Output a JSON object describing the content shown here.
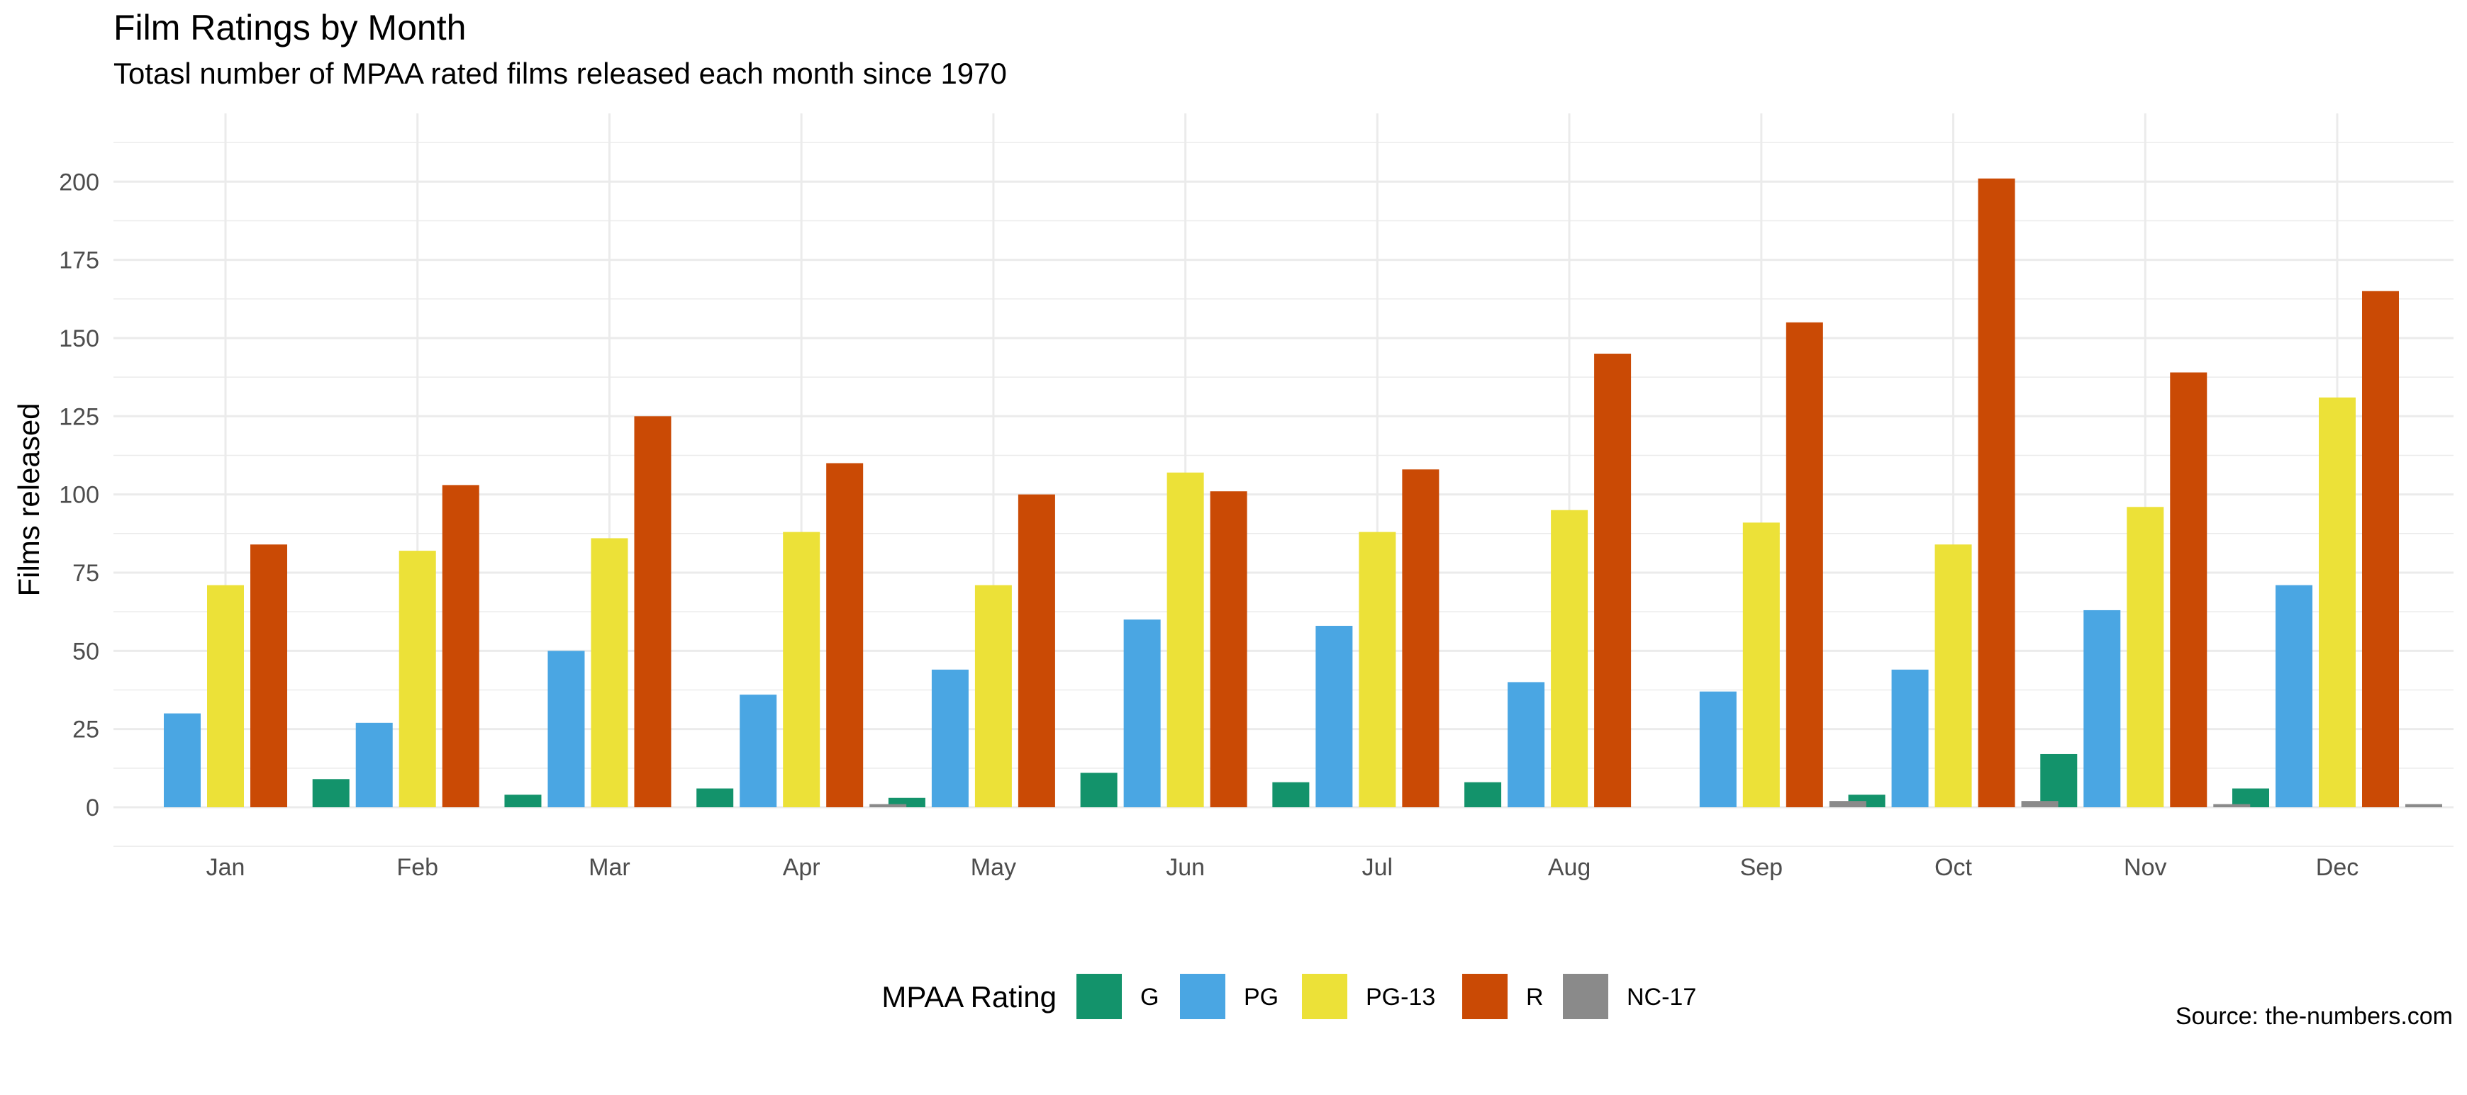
{
  "chart_data": {
    "type": "bar",
    "title": "Film Ratings by Month",
    "subtitle": "Totasl number of MPAA rated films released each month since 1970",
    "xlabel": "",
    "ylabel": "Films released",
    "ylim": [
      0,
      220
    ],
    "yticks": [
      0,
      25,
      50,
      75,
      100,
      125,
      150,
      175,
      200
    ],
    "grid": true,
    "legend": {
      "title": "MPAA Rating",
      "position": "bottom"
    },
    "categories": [
      "Jan",
      "Feb",
      "Mar",
      "Apr",
      "May",
      "Jun",
      "Jul",
      "Aug",
      "Sep",
      "Oct",
      "Nov",
      "Dec"
    ],
    "series": [
      {
        "name": "G",
        "color": "#13936B",
        "values": [
          null,
          9,
          4,
          6,
          3,
          11,
          8,
          8,
          null,
          4,
          17,
          6
        ]
      },
      {
        "name": "PG",
        "color": "#4AA6E3",
        "values": [
          30,
          27,
          50,
          36,
          44,
          60,
          58,
          40,
          37,
          44,
          63,
          71
        ]
      },
      {
        "name": "PG-13",
        "color": "#ECE138",
        "values": [
          71,
          82,
          86,
          88,
          71,
          107,
          88,
          95,
          91,
          84,
          96,
          131
        ]
      },
      {
        "name": "R",
        "color": "#CA4A05",
        "values": [
          84,
          103,
          125,
          110,
          100,
          101,
          108,
          145,
          155,
          201,
          139,
          165
        ]
      },
      {
        "name": "NC-17",
        "color": "#8A8A8A",
        "values": [
          null,
          null,
          null,
          1,
          null,
          null,
          null,
          null,
          2,
          2,
          1,
          1
        ]
      }
    ],
    "caption": "Source: the-numbers.com"
  }
}
